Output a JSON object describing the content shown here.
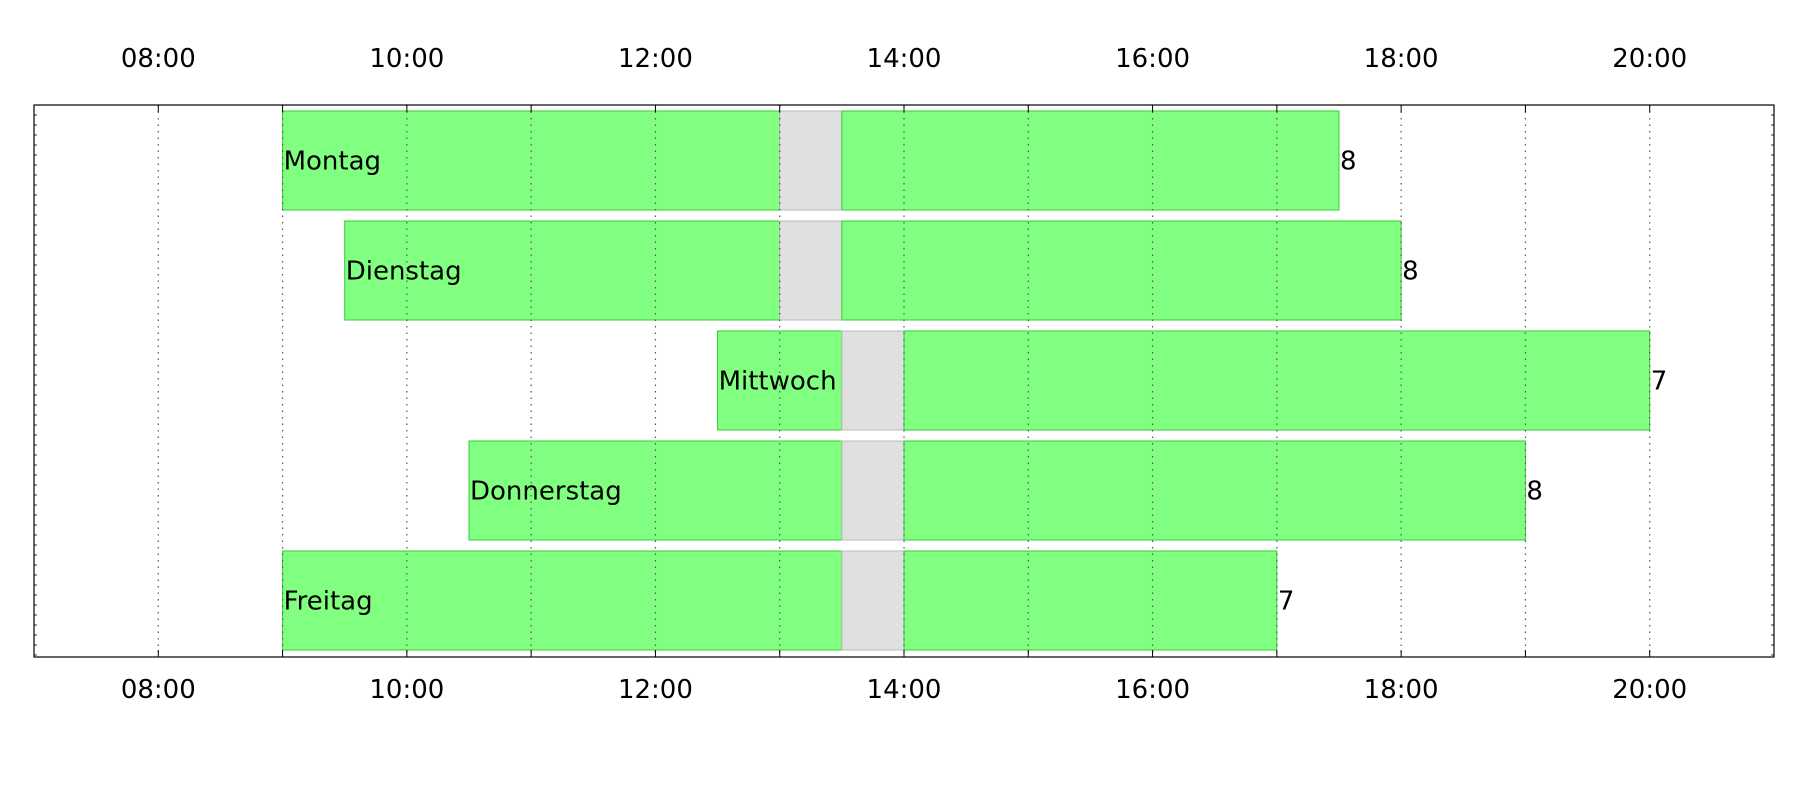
{
  "chart_data": {
    "type": "gantt",
    "x_axis": {
      "min_hour": 7,
      "max_hour": 21,
      "tick_labels": [
        "08:00",
        "10:00",
        "12:00",
        "14:00",
        "16:00",
        "18:00",
        "20:00"
      ],
      "tick_hours": [
        8,
        10,
        12,
        14,
        16,
        18,
        20
      ],
      "grid_hours": [
        8,
        9,
        10,
        11,
        12,
        13,
        14,
        15,
        16,
        17,
        18,
        19,
        20
      ],
      "grid": "dotted"
    },
    "rows": [
      {
        "day": "Montag",
        "start": 9.0,
        "break_start": 13.0,
        "break_end": 13.5,
        "end": 17.5,
        "hours": "8"
      },
      {
        "day": "Dienstag",
        "start": 9.5,
        "break_start": 13.0,
        "break_end": 13.5,
        "end": 18.0,
        "hours": "8"
      },
      {
        "day": "Mittwoch",
        "start": 12.5,
        "break_start": 13.5,
        "break_end": 14.0,
        "end": 20.0,
        "hours": "7"
      },
      {
        "day": "Donnerstag",
        "start": 10.5,
        "break_start": 13.5,
        "break_end": 14.0,
        "end": 19.0,
        "hours": "8"
      },
      {
        "day": "Freitag",
        "start": 9.0,
        "break_start": 13.5,
        "break_end": 14.0,
        "end": 17.0,
        "hours": "7"
      }
    ],
    "colors": {
      "work": "#80ff80",
      "work_border": "#33cc33",
      "break": "#e0e0e0",
      "break_border": "#bbbbbb",
      "grid": "#555555",
      "frame": "#000000"
    }
  }
}
